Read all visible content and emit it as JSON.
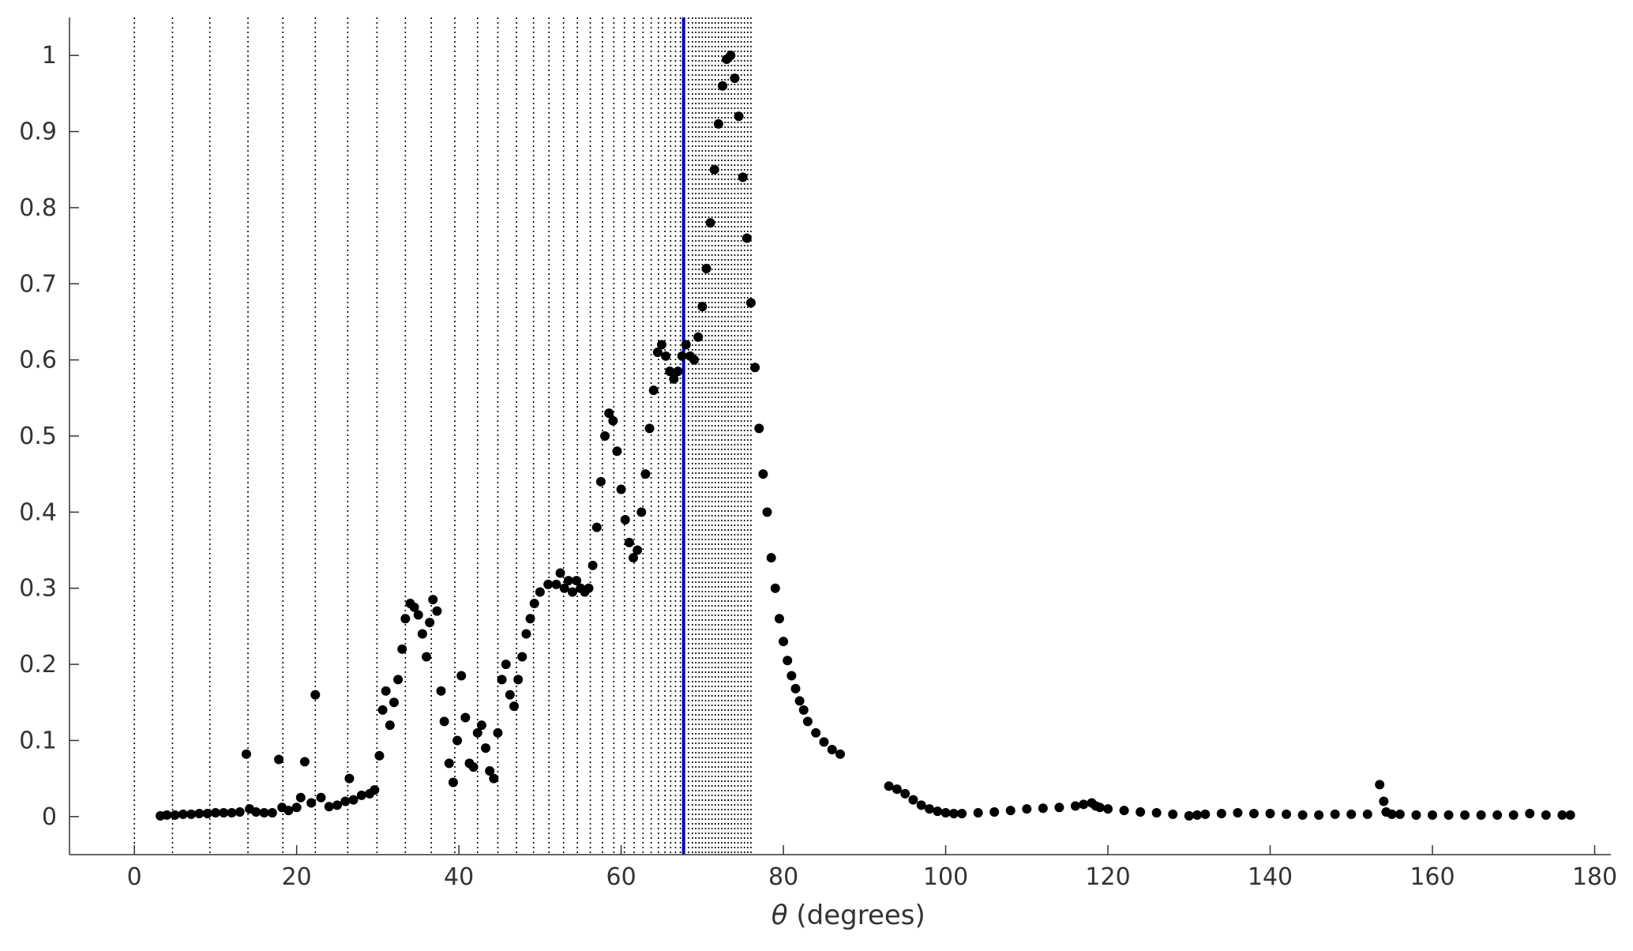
{
  "chart_data": {
    "type": "scatter",
    "title": "",
    "xlabel_symbol": "θ",
    "xlabel_rest": " (degrees)",
    "ylabel": "",
    "xlim": [
      -8,
      182
    ],
    "ylim": [
      -0.05,
      1.05
    ],
    "x_ticks": [
      0,
      20,
      40,
      60,
      80,
      100,
      120,
      140,
      160,
      180
    ],
    "x_tick_labels": [
      "0",
      "20",
      "40",
      "60",
      "80",
      "100",
      "120",
      "140",
      "160",
      "180"
    ],
    "y_ticks": [
      0,
      0.1,
      0.2,
      0.3,
      0.4,
      0.5,
      0.6,
      0.7,
      0.8,
      0.9,
      1
    ],
    "y_tick_labels": [
      "0",
      "0.1",
      "0.2",
      "0.3",
      "0.4",
      "0.5",
      "0.6",
      "0.7",
      "0.8",
      "0.9",
      "1"
    ],
    "grid": false,
    "marker_color": "#000000",
    "highlight_line": {
      "x": 67.7,
      "color": "#0000cc"
    },
    "dotted_lines": {
      "color": "#000000",
      "x": [
        0,
        4.7,
        9.3,
        14.0,
        18.3,
        22.3,
        26.3,
        29.9,
        33.4,
        36.6,
        39.5,
        42.3,
        44.8,
        47.1,
        49.2,
        51.1,
        52.9,
        54.6,
        56.2,
        57.7,
        59.1,
        60.4,
        61.6,
        62.7,
        63.7,
        64.6,
        65.4,
        66.1,
        66.7,
        67.3,
        67.8,
        68.3,
        68.8,
        69.2,
        69.6,
        70.0,
        70.4,
        70.8,
        71.2,
        71.6,
        72.0,
        72.4,
        72.8,
        73.2,
        73.6,
        74.0,
        74.4,
        74.8,
        75.2,
        75.6,
        76.0
      ]
    },
    "series": [
      {
        "x": [
          3.2,
          4,
          5,
          6,
          7,
          8,
          9,
          10,
          11,
          12,
          13,
          13.8,
          14.2,
          15,
          16,
          17,
          17.8,
          18.2,
          19,
          20,
          20.5,
          21,
          21.8,
          22.3,
          23,
          24,
          25,
          26,
          26.5,
          27,
          28,
          29,
          29.6,
          30.2,
          30.6,
          31,
          31.5,
          32,
          32.5,
          33,
          33.4,
          34,
          34.5,
          35,
          35.5,
          36,
          36.4,
          36.8,
          37.3,
          37.8,
          38.2,
          38.8,
          39.3,
          39.8,
          40.3,
          40.8,
          41.3,
          41.8,
          42.3,
          42.8,
          43.3,
          43.8,
          44.3,
          44.8,
          45.3,
          45.8,
          46.3,
          46.8,
          47.3,
          47.8,
          48.3,
          48.8,
          49.3,
          50,
          51,
          52,
          52.5,
          53,
          53.5,
          54,
          54.5,
          55,
          55.5,
          56,
          56.5,
          57,
          57.5,
          58,
          58.5,
          59,
          59.5,
          60,
          60.5,
          61,
          61.5,
          62,
          62.5,
          63,
          63.5,
          64,
          64.5,
          65,
          65.5,
          66,
          66.5,
          67,
          67.5,
          68,
          68.5,
          69,
          69.5,
          70,
          70.5,
          71,
          71.5,
          72,
          72.5,
          73,
          73.5,
          74,
          74.5,
          75,
          75.5,
          76,
          76.5,
          77,
          77.5,
          78,
          78.5,
          79,
          79.5,
          80,
          80.5,
          81,
          81.5,
          82,
          82.5,
          83,
          84,
          85,
          86,
          87,
          93,
          94,
          95,
          96,
          97,
          98,
          99,
          100,
          101,
          102,
          104,
          106,
          108,
          110,
          112,
          114,
          116,
          117,
          118,
          118.5,
          119,
          120,
          122,
          124,
          126,
          128,
          130,
          131,
          132,
          134,
          136,
          138,
          140,
          142,
          144,
          146,
          148,
          150,
          152,
          153.5,
          154,
          154.3,
          155,
          156,
          158,
          160,
          162,
          164,
          166,
          168,
          170,
          172,
          174,
          176,
          177
        ],
        "y": [
          0.001,
          0.002,
          0.002,
          0.003,
          0.003,
          0.004,
          0.004,
          0.005,
          0.005,
          0.005,
          0.006,
          0.082,
          0.01,
          0.006,
          0.005,
          0.005,
          0.075,
          0.012,
          0.008,
          0.012,
          0.025,
          0.072,
          0.018,
          0.16,
          0.025,
          0.013,
          0.015,
          0.02,
          0.05,
          0.022,
          0.028,
          0.03,
          0.035,
          0.08,
          0.14,
          0.165,
          0.12,
          0.15,
          0.18,
          0.22,
          0.26,
          0.28,
          0.275,
          0.265,
          0.24,
          0.21,
          0.255,
          0.285,
          0.27,
          0.165,
          0.125,
          0.07,
          0.045,
          0.1,
          0.185,
          0.13,
          0.07,
          0.065,
          0.11,
          0.12,
          0.09,
          0.06,
          0.05,
          0.11,
          0.18,
          0.2,
          0.16,
          0.145,
          0.18,
          0.21,
          0.24,
          0.26,
          0.28,
          0.295,
          0.305,
          0.305,
          0.32,
          0.3,
          0.31,
          0.295,
          0.31,
          0.3,
          0.295,
          0.3,
          0.33,
          0.38,
          0.44,
          0.5,
          0.53,
          0.52,
          0.48,
          0.43,
          0.39,
          0.36,
          0.34,
          0.35,
          0.4,
          0.45,
          0.51,
          0.56,
          0.61,
          0.62,
          0.605,
          0.585,
          0.575,
          0.585,
          0.605,
          0.62,
          0.605,
          0.6,
          0.63,
          0.67,
          0.72,
          0.78,
          0.85,
          0.91,
          0.96,
          0.995,
          1.0,
          0.97,
          0.92,
          0.84,
          0.76,
          0.675,
          0.59,
          0.51,
          0.45,
          0.4,
          0.34,
          0.3,
          0.26,
          0.23,
          0.205,
          0.185,
          0.168,
          0.152,
          0.14,
          0.125,
          0.11,
          0.098,
          0.088,
          0.082,
          0.04,
          0.036,
          0.03,
          0.022,
          0.015,
          0.01,
          0.007,
          0.005,
          0.004,
          0.004,
          0.005,
          0.006,
          0.008,
          0.01,
          0.011,
          0.012,
          0.014,
          0.016,
          0.018,
          0.014,
          0.012,
          0.01,
          0.008,
          0.006,
          0.005,
          0.003,
          0.001,
          0.002,
          0.003,
          0.004,
          0.005,
          0.004,
          0.004,
          0.003,
          0.002,
          0.002,
          0.003,
          0.003,
          0.003,
          0.042,
          0.02,
          0.006,
          0.003,
          0.003,
          0.002,
          0.002,
          0.002,
          0.002,
          0.002,
          0.002,
          0.002,
          0.004,
          0.002,
          0.002,
          0.002
        ]
      }
    ]
  }
}
